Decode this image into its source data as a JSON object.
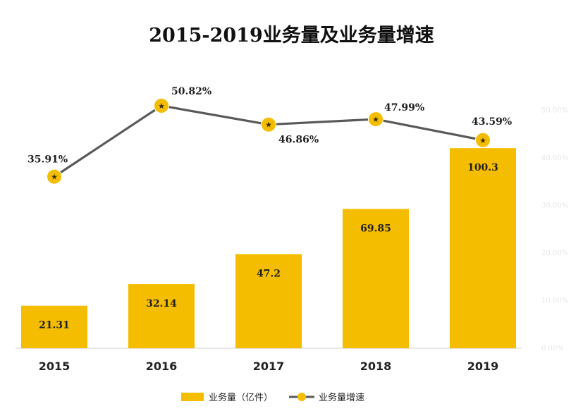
{
  "chart_data": {
    "type": "bar",
    "title": "2015-2019业务量及业务量增速",
    "categories": [
      "2015",
      "2016",
      "2017",
      "2018",
      "2019"
    ],
    "series": [
      {
        "name": "业务量（亿件）",
        "type": "bar",
        "values": [
          21.31,
          32.14,
          47.2,
          69.85,
          100.3
        ],
        "labels": [
          "21.31",
          "32.14",
          "47.2",
          "69.85",
          "100.3"
        ]
      },
      {
        "name": "业务量增速",
        "type": "line",
        "values": [
          35.91,
          50.82,
          46.86,
          47.99,
          43.59
        ],
        "labels": [
          "35.91%",
          "50.82%",
          "46.86%",
          "47.99%",
          "43.59%"
        ]
      }
    ],
    "y2_ticks": [
      "0.00%",
      "10.00%",
      "20.00%",
      "30.00%",
      "40.00%",
      "50.00%"
    ],
    "legend_position": "bottom",
    "grid": false
  },
  "colors": {
    "bar": "#f5bd00",
    "line": "#595959",
    "marker": "#f5bd00",
    "marker_icon": "#3a2a00",
    "baseline": "#d0d0d0"
  },
  "icons": {
    "line_marker": "star-icon"
  }
}
